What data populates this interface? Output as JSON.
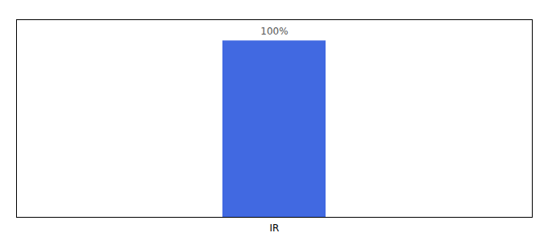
{
  "chart_data": {
    "type": "bar",
    "categories": [
      "IR"
    ],
    "values": [
      100
    ],
    "value_labels": [
      "100%"
    ],
    "data_labels": true,
    "color": "#4169E1",
    "ylim": [
      0,
      112
    ],
    "tick_labels": "x"
  }
}
